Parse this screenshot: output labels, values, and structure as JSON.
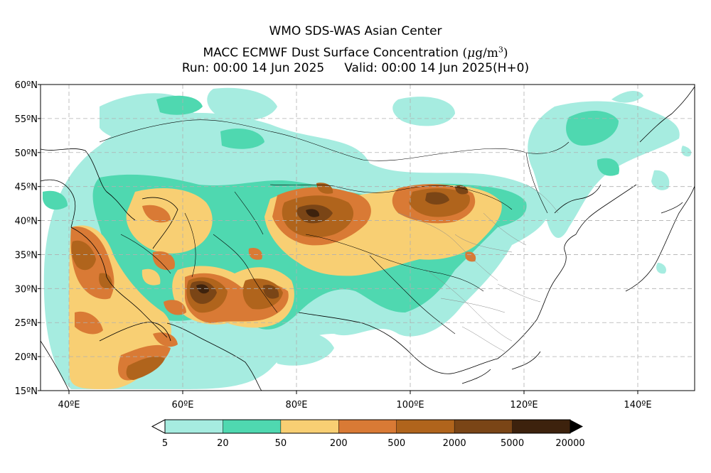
{
  "title": {
    "line1": "WMO SDS-WAS Asian Center",
    "line2_text": "MACC ECMWF Dust Surface Concentration",
    "line2_unit_mu": "μ",
    "line2_unit_rest": "g/m",
    "line2_unit_exp": "3",
    "run": "Run: 00:00 14 Jun 2025",
    "valid": "Valid: 00:00 14 Jun 2025(H+0)"
  },
  "map": {
    "lon_range": [
      35,
      150
    ],
    "lat_range": [
      15,
      60
    ],
    "lon_ticks": [
      {
        "value": 40,
        "label": "40ºE"
      },
      {
        "value": 60,
        "label": "60ºE"
      },
      {
        "value": 80,
        "label": "80ºE"
      },
      {
        "value": 100,
        "label": "100ºE"
      },
      {
        "value": 120,
        "label": "120ºE"
      },
      {
        "value": 140,
        "label": "140ºE"
      }
    ],
    "lat_ticks": [
      {
        "value": 60,
        "label": "60ºN"
      },
      {
        "value": 55,
        "label": "55ºN"
      },
      {
        "value": 50,
        "label": "50ºN"
      },
      {
        "value": 45,
        "label": "45ºN"
      },
      {
        "value": 40,
        "label": "40ºN"
      },
      {
        "value": 35,
        "label": "35ºN"
      },
      {
        "value": 30,
        "label": "30ºN"
      },
      {
        "value": 25,
        "label": "25ºN"
      },
      {
        "value": 20,
        "label": "20ºN"
      },
      {
        "value": 15,
        "label": "15ºN"
      }
    ],
    "grid": "dashed"
  },
  "colorbar": {
    "labels": [
      "5",
      "20",
      "50",
      "200",
      "500",
      "2000",
      "5000",
      "20000"
    ],
    "colors": [
      "#a6ece0",
      "#4fd8b0",
      "#f8cf73",
      "#d97a35",
      "#b0641c",
      "#7a4516",
      "#3d220d"
    ],
    "extends": "both"
  }
}
